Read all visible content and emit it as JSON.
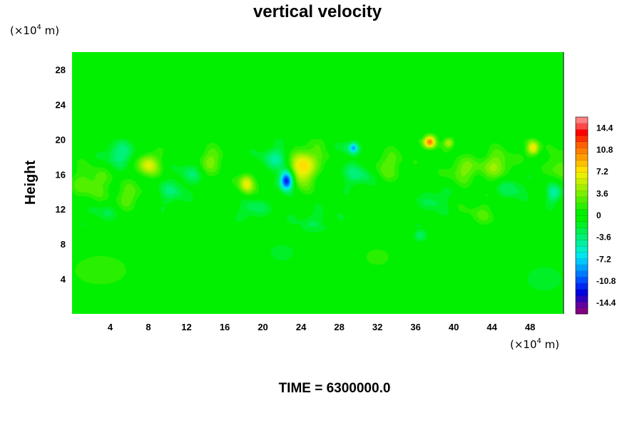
{
  "chart_data": {
    "type": "heatmap",
    "title": "vertical velocity",
    "ylabel": "Height",
    "xlabel": "",
    "x_unit": {
      "prefix": "(×10",
      "exp": "4",
      "suffix": " m)"
    },
    "y_unit": {
      "prefix": "(×10",
      "exp": "4",
      "suffix": " m)"
    },
    "xlim": [
      0,
      51.5
    ],
    "ylim": [
      0,
      30
    ],
    "x_ticks": [
      4,
      8,
      12,
      16,
      20,
      24,
      28,
      32,
      36,
      40,
      44,
      48
    ],
    "y_ticks": [
      4,
      8,
      12,
      16,
      20,
      24,
      28
    ],
    "colorbar": {
      "range": [
        -16.2,
        16.2
      ],
      "ticks": [
        14.4,
        10.8,
        7.2,
        3.6,
        0,
        -3.6,
        -7.2,
        -10.8,
        -14.4
      ],
      "levels": [
        "#800080",
        "#6000a0",
        "#3000c0",
        "#0000e0",
        "#0028f0",
        "#0050ff",
        "#0078ff",
        "#00a0ff",
        "#00c8ff",
        "#00e6f0",
        "#00f0c8",
        "#00f0a0",
        "#00f078",
        "#00f050",
        "#00f028",
        "#00f000",
        "#00f000",
        "#28f000",
        "#50f000",
        "#78f000",
        "#a0f000",
        "#c8f000",
        "#e6f000",
        "#ffe000",
        "#ffc000",
        "#ffa000",
        "#ff8000",
        "#ff6000",
        "#ff3000",
        "#ff0000",
        "#ff4848",
        "#ff8080"
      ]
    },
    "field_features": [
      {
        "x": 24,
        "y": 16.8,
        "value": 8.5,
        "sx": 1.0,
        "sy": 1.4
      },
      {
        "x": 22.5,
        "y": 15.3,
        "value": -14.0,
        "sx": 0.5,
        "sy": 0.8
      },
      {
        "x": 18.3,
        "y": 14.9,
        "value": 7.0,
        "sx": 0.55,
        "sy": 0.8
      },
      {
        "x": 8,
        "y": 17.1,
        "value": 6.5,
        "sx": 0.8,
        "sy": 0.9
      },
      {
        "x": 37.5,
        "y": 19.7,
        "value": 10.8,
        "sx": 0.45,
        "sy": 0.5
      },
      {
        "x": 48.3,
        "y": 19.0,
        "value": 8.0,
        "sx": 0.45,
        "sy": 0.6
      },
      {
        "x": 39.5,
        "y": 19.6,
        "value": 5.0,
        "sx": 0.4,
        "sy": 0.4
      },
      {
        "x": 44.5,
        "y": 17.0,
        "value": 4.0,
        "sx": 1.2,
        "sy": 1.2
      },
      {
        "x": 14.5,
        "y": 17.5,
        "value": 3.5,
        "sx": 1.0,
        "sy": 1.0
      },
      {
        "x": 26.5,
        "y": 18.5,
        "value": 3.0,
        "sx": 1.0,
        "sy": 1.0
      },
      {
        "x": 41,
        "y": 16.5,
        "value": 3.5,
        "sx": 1.1,
        "sy": 1.0
      },
      {
        "x": 2,
        "y": 15.0,
        "value": 3.0,
        "sx": 1.4,
        "sy": 1.4
      },
      {
        "x": 6,
        "y": 13.5,
        "value": 2.8,
        "sx": 1.0,
        "sy": 1.0
      },
      {
        "x": 33,
        "y": 17.0,
        "value": 2.8,
        "sx": 1.3,
        "sy": 1.2
      },
      {
        "x": 51,
        "y": 17.0,
        "value": 3.0,
        "sx": 0.8,
        "sy": 1.2
      },
      {
        "x": 5,
        "y": 18.3,
        "value": -4.0,
        "sx": 1.2,
        "sy": 1.0
      },
      {
        "x": 21.5,
        "y": 17.8,
        "value": -4.0,
        "sx": 1.2,
        "sy": 1.0
      },
      {
        "x": 30,
        "y": 16.0,
        "value": -3.5,
        "sx": 1.2,
        "sy": 1.0
      },
      {
        "x": 50.5,
        "y": 13.8,
        "value": -4.5,
        "sx": 0.6,
        "sy": 0.8
      },
      {
        "x": 10.5,
        "y": 14.0,
        "value": -3.0,
        "sx": 1.0,
        "sy": 1.0
      },
      {
        "x": 28,
        "y": 18.9,
        "value": -3.0,
        "sx": 1.5,
        "sy": 0.6
      },
      {
        "x": 29.5,
        "y": 19.0,
        "value": -6.0,
        "sx": 0.3,
        "sy": 0.4
      },
      {
        "x": 19,
        "y": 12.0,
        "value": -3.0,
        "sx": 1.0,
        "sy": 0.8
      },
      {
        "x": 38,
        "y": 13.0,
        "value": -2.5,
        "sx": 1.0,
        "sy": 1.0
      },
      {
        "x": 46,
        "y": 14.5,
        "value": -3.0,
        "sx": 1.0,
        "sy": 1.0
      },
      {
        "x": 12.5,
        "y": 16.2,
        "value": -2.8,
        "sx": 0.9,
        "sy": 0.9
      },
      {
        "x": 36.5,
        "y": 9.0,
        "value": -3.2,
        "sx": 0.5,
        "sy": 0.5
      },
      {
        "x": 3,
        "y": 11.5,
        "value": -2.0,
        "sx": 1.2,
        "sy": 0.8
      },
      {
        "x": 25.5,
        "y": 10.5,
        "value": -1.8,
        "sx": 1.5,
        "sy": 1.0
      },
      {
        "x": 43,
        "y": 11.5,
        "value": 1.8,
        "sx": 1.4,
        "sy": 1.0
      },
      {
        "x": 3,
        "y": 5.0,
        "value": 1.8,
        "sx": 2.5,
        "sy": 1.5
      },
      {
        "x": 49.5,
        "y": 4.0,
        "value": -1.5,
        "sx": 2.0,
        "sy": 1.5
      },
      {
        "x": 22,
        "y": 7.0,
        "value": -1.2,
        "sx": 2.0,
        "sy": 1.5
      },
      {
        "x": 32,
        "y": 6.5,
        "value": 1.2,
        "sx": 2.0,
        "sy": 1.5
      }
    ],
    "footer": "TIME = 6300000.0"
  }
}
